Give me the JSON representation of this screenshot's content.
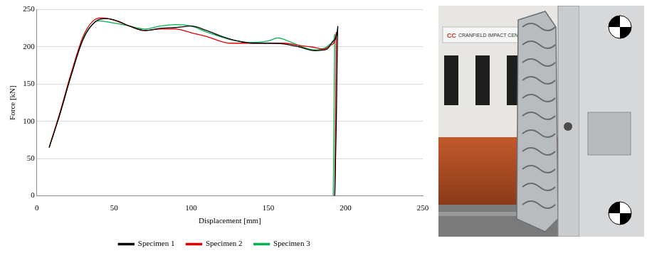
{
  "chart_data": {
    "type": "line",
    "x_label": "Displacement [mm]",
    "y_label": "Force [kN]",
    "xlim": [
      0,
      250
    ],
    "xticks": [
      0,
      50,
      100,
      150,
      200,
      250
    ],
    "ylim": [
      0,
      250
    ],
    "yticks": [
      0,
      50,
      100,
      150,
      200,
      250
    ],
    "grid": true,
    "legend": "bottom",
    "marker": "none",
    "line_style": "solid",
    "series": [
      {
        "name": "Specimen 1",
        "color": "#000000",
        "x": [
          8,
          15,
          22,
          30,
          38,
          45,
          52,
          60,
          70,
          80,
          90,
          100,
          110,
          120,
          130,
          140,
          150,
          160,
          170,
          180,
          188,
          192,
          195,
          194,
          193
        ],
        "values": [
          65,
          110,
          160,
          210,
          234,
          238,
          235,
          228,
          222,
          225,
          226,
          228,
          222,
          214,
          208,
          205,
          205,
          204,
          200,
          195,
          197,
          208,
          228,
          100,
          0
        ]
      },
      {
        "name": "Specimen 2",
        "color": "#e00000",
        "x": [
          8,
          15,
          22,
          30,
          36,
          42,
          50,
          60,
          70,
          80,
          90,
          100,
          110,
          125,
          140,
          150,
          160,
          170,
          178,
          186,
          191,
          194,
          193.5,
          193
        ],
        "values": [
          65,
          112,
          163,
          214,
          234,
          239,
          236,
          228,
          222,
          224,
          224,
          219,
          214,
          205,
          205,
          205,
          205,
          202,
          200,
          197,
          203,
          220,
          100,
          0
        ]
      },
      {
        "name": "Specimen 3",
        "color": "#00b050",
        "x": [
          8,
          15,
          22,
          30,
          35,
          40,
          50,
          60,
          70,
          80,
          90,
          100,
          110,
          125,
          140,
          150,
          156,
          165,
          172,
          180,
          187,
          191,
          193,
          192.5,
          192
        ],
        "values": [
          65,
          110,
          160,
          212,
          228,
          235,
          232,
          228,
          224,
          228,
          230,
          228,
          220,
          210,
          206,
          208,
          212,
          206,
          200,
          196,
          199,
          205,
          217,
          100,
          0
        ]
      }
    ]
  },
  "photo": {
    "sign_logo": "CC",
    "sign_text": "CRANFIELD IMPACT CENTRE"
  }
}
